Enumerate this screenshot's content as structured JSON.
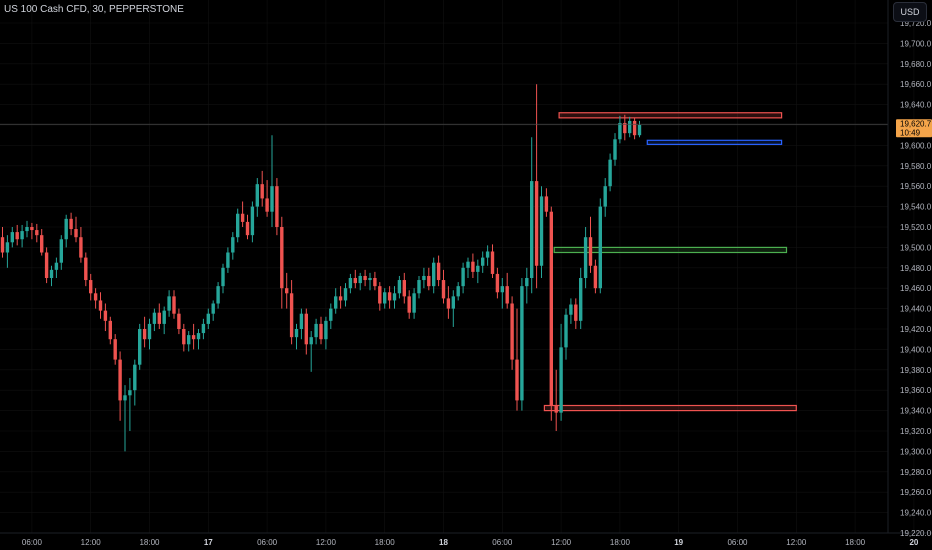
{
  "header": {
    "symbol_title": "US 100 Cash CFD, 30, PEPPERSTONE",
    "currency_button": "USD"
  },
  "price_badge": {
    "price": "19,620.7",
    "countdown": "10:49"
  },
  "colors": {
    "up": "#26a69a",
    "down": "#ef5350",
    "background": "#000000",
    "grid": "#111111",
    "axis_text": "#b2b5be",
    "price_label": "#f4a44a",
    "zone_red": "#ef5350",
    "zone_blue": "#2962ff",
    "zone_green": "#4caf50"
  },
  "chart_data": {
    "type": "candlestick",
    "instrument": "US 100 Cash CFD",
    "timeframe": "30",
    "exchange": "PEPPERSTONE",
    "y_ticks": [
      "19,720.0",
      "19,700.0",
      "19,680.0",
      "19,660.0",
      "19,640.0",
      "19,620.0",
      "19,600.0",
      "19,580.0",
      "19,560.0",
      "19,540.0",
      "19,520.0",
      "19,500.0",
      "19,480.0",
      "19,460.0",
      "19,440.0",
      "19,420.0",
      "19,400.0",
      "19,380.0",
      "19,360.0",
      "19,340.0",
      "19,320.0",
      "19,300.0",
      "19,280.0",
      "19,260.0",
      "19,240.0",
      "19,220.0"
    ],
    "x_ticks": [
      {
        "label": "06:00",
        "bold": false
      },
      {
        "label": "12:00",
        "bold": false
      },
      {
        "label": "18:00",
        "bold": false
      },
      {
        "label": "17",
        "bold": true
      },
      {
        "label": "06:00",
        "bold": false
      },
      {
        "label": "12:00",
        "bold": false
      },
      {
        "label": "18:00",
        "bold": false
      },
      {
        "label": "18",
        "bold": true
      },
      {
        "label": "06:00",
        "bold": false
      },
      {
        "label": "12:00",
        "bold": false
      },
      {
        "label": "18:00",
        "bold": false
      },
      {
        "label": "19",
        "bold": true
      },
      {
        "label": "06:00",
        "bold": false
      },
      {
        "label": "12:00",
        "bold": false
      },
      {
        "label": "18:00",
        "bold": false
      },
      {
        "label": "20",
        "bold": true
      }
    ],
    "ylim": [
      19220,
      19730
    ],
    "last_price": 19620.7,
    "zones": [
      {
        "type": "supply",
        "color": "red",
        "top": 19632,
        "bottom": 19627,
        "from_bar": 114,
        "to_bar": 159
      },
      {
        "type": "demand",
        "color": "blue",
        "top": 19605,
        "bottom": 19601,
        "from_bar": 132,
        "to_bar": 159
      },
      {
        "type": "level",
        "color": "green",
        "top": 19500,
        "bottom": 19495,
        "from_bar": 113,
        "to_bar": 160
      },
      {
        "type": "demand",
        "color": "red",
        "top": 19345,
        "bottom": 19340,
        "from_bar": 111,
        "to_bar": 162
      }
    ],
    "ohlc": [
      [
        19510,
        19520,
        19490,
        19495
      ],
      [
        19495,
        19512,
        19480,
        19505
      ],
      [
        19505,
        19520,
        19500,
        19515
      ],
      [
        19515,
        19522,
        19502,
        19508
      ],
      [
        19508,
        19522,
        19500,
        19516
      ],
      [
        19516,
        19526,
        19510,
        19520
      ],
      [
        19520,
        19524,
        19508,
        19517
      ],
      [
        19517,
        19523,
        19505,
        19512
      ],
      [
        19512,
        19518,
        19492,
        19495
      ],
      [
        19495,
        19500,
        19465,
        19470
      ],
      [
        19470,
        19482,
        19462,
        19478
      ],
      [
        19478,
        19490,
        19470,
        19485
      ],
      [
        19485,
        19512,
        19478,
        19508
      ],
      [
        19508,
        19532,
        19500,
        19528
      ],
      [
        19528,
        19534,
        19512,
        19518
      ],
      [
        19518,
        19530,
        19505,
        19510
      ],
      [
        19510,
        19520,
        19485,
        19490
      ],
      [
        19490,
        19495,
        19462,
        19468
      ],
      [
        19468,
        19474,
        19448,
        19455
      ],
      [
        19455,
        19460,
        19440,
        19448
      ],
      [
        19448,
        19456,
        19430,
        19438
      ],
      [
        19438,
        19445,
        19418,
        19428
      ],
      [
        19428,
        19432,
        19405,
        19410
      ],
      [
        19410,
        19415,
        19385,
        19390
      ],
      [
        19390,
        19398,
        19330,
        19350
      ],
      [
        19350,
        19365,
        19300,
        19355
      ],
      [
        19355,
        19372,
        19320,
        19360
      ],
      [
        19360,
        19390,
        19345,
        19385
      ],
      [
        19385,
        19425,
        19380,
        19420
      ],
      [
        19420,
        19432,
        19402,
        19410
      ],
      [
        19410,
        19430,
        19400,
        19425
      ],
      [
        19425,
        19440,
        19418,
        19436
      ],
      [
        19436,
        19445,
        19420,
        19425
      ],
      [
        19425,
        19442,
        19415,
        19438
      ],
      [
        19438,
        19458,
        19432,
        19452
      ],
      [
        19452,
        19458,
        19430,
        19435
      ],
      [
        19435,
        19440,
        19415,
        19420
      ],
      [
        19420,
        19425,
        19398,
        19405
      ],
      [
        19405,
        19418,
        19398,
        19414
      ],
      [
        19414,
        19425,
        19400,
        19410
      ],
      [
        19410,
        19420,
        19400,
        19416
      ],
      [
        19416,
        19430,
        19410,
        19425
      ],
      [
        19425,
        19440,
        19420,
        19435
      ],
      [
        19435,
        19448,
        19428,
        19445
      ],
      [
        19445,
        19466,
        19440,
        19462
      ],
      [
        19462,
        19484,
        19455,
        19480
      ],
      [
        19480,
        19500,
        19475,
        19495
      ],
      [
        19495,
        19515,
        19488,
        19510
      ],
      [
        19510,
        19538,
        19505,
        19533
      ],
      [
        19533,
        19545,
        19520,
        19525
      ],
      [
        19525,
        19532,
        19508,
        19512
      ],
      [
        19512,
        19545,
        19505,
        19540
      ],
      [
        19540,
        19568,
        19530,
        19562
      ],
      [
        19562,
        19575,
        19540,
        19548
      ],
      [
        19548,
        19566,
        19530,
        19535
      ],
      [
        19535,
        19610,
        19520,
        19560
      ],
      [
        19560,
        19568,
        19512,
        19520
      ],
      [
        19520,
        19530,
        19440,
        19460
      ],
      [
        19460,
        19475,
        19440,
        19455
      ],
      [
        19455,
        19468,
        19405,
        19412
      ],
      [
        19412,
        19425,
        19400,
        19420
      ],
      [
        19420,
        19440,
        19410,
        19435
      ],
      [
        19435,
        19440,
        19395,
        19405
      ],
      [
        19405,
        19418,
        19378,
        19412
      ],
      [
        19412,
        19430,
        19405,
        19425
      ],
      [
        19425,
        19432,
        19405,
        19410
      ],
      [
        19410,
        19432,
        19400,
        19428
      ],
      [
        19428,
        19445,
        19420,
        19440
      ],
      [
        19440,
        19460,
        19435,
        19452
      ],
      [
        19452,
        19462,
        19440,
        19448
      ],
      [
        19448,
        19465,
        19442,
        19460
      ],
      [
        19460,
        19474,
        19455,
        19470
      ],
      [
        19470,
        19478,
        19460,
        19465
      ],
      [
        19465,
        19475,
        19458,
        19472
      ],
      [
        19472,
        19478,
        19462,
        19468
      ],
      [
        19468,
        19475,
        19458,
        19470
      ],
      [
        19470,
        19476,
        19458,
        19462
      ],
      [
        19462,
        19466,
        19438,
        19445
      ],
      [
        19445,
        19460,
        19440,
        19456
      ],
      [
        19456,
        19462,
        19440,
        19448
      ],
      [
        19448,
        19462,
        19440,
        19455
      ],
      [
        19455,
        19472,
        19450,
        19468
      ],
      [
        19468,
        19475,
        19445,
        19452
      ],
      [
        19452,
        19458,
        19430,
        19436
      ],
      [
        19436,
        19460,
        19430,
        19455
      ],
      [
        19455,
        19472,
        19450,
        19468
      ],
      [
        19468,
        19480,
        19460,
        19472
      ],
      [
        19472,
        19480,
        19458,
        19462
      ],
      [
        19462,
        19490,
        19455,
        19485
      ],
      [
        19485,
        19492,
        19462,
        19468
      ],
      [
        19468,
        19478,
        19445,
        19450
      ],
      [
        19450,
        19462,
        19430,
        19440
      ],
      [
        19440,
        19458,
        19422,
        19452
      ],
      [
        19452,
        19466,
        19448,
        19462
      ],
      [
        19462,
        19485,
        19455,
        19480
      ],
      [
        19480,
        19490,
        19470,
        19486
      ],
      [
        19486,
        19494,
        19470,
        19476
      ],
      [
        19476,
        19488,
        19465,
        19482
      ],
      [
        19482,
        19496,
        19475,
        19490
      ],
      [
        19490,
        19502,
        19482,
        19496
      ],
      [
        19496,
        19503,
        19470,
        19474
      ],
      [
        19474,
        19480,
        19450,
        19456
      ],
      [
        19456,
        19470,
        19440,
        19462
      ],
      [
        19462,
        19475,
        19440,
        19445
      ],
      [
        19445,
        19452,
        19380,
        19390
      ],
      [
        19390,
        19440,
        19340,
        19350
      ],
      [
        19350,
        19470,
        19340,
        19462
      ],
      [
        19462,
        19480,
        19445,
        19470
      ],
      [
        19470,
        19608,
        19455,
        19565
      ],
      [
        19565,
        19660,
        19460,
        19482
      ],
      [
        19482,
        19560,
        19470,
        19550
      ],
      [
        19550,
        19558,
        19530,
        19535
      ],
      [
        19535,
        19540,
        19330,
        19345
      ],
      [
        19345,
        19380,
        19320,
        19338
      ],
      [
        19338,
        19425,
        19330,
        19402
      ],
      [
        19402,
        19440,
        19390,
        19434
      ],
      [
        19434,
        19450,
        19425,
        19444
      ],
      [
        19444,
        19450,
        19420,
        19428
      ],
      [
        19428,
        19480,
        19420,
        19470
      ],
      [
        19470,
        19520,
        19460,
        19510
      ],
      [
        19510,
        19530,
        19475,
        19482
      ],
      [
        19482,
        19488,
        19455,
        19460
      ],
      [
        19460,
        19548,
        19455,
        19540
      ],
      [
        19540,
        19568,
        19530,
        19560
      ],
      [
        19560,
        19592,
        19555,
        19586
      ],
      [
        19586,
        19612,
        19580,
        19606
      ],
      [
        19606,
        19629,
        19602,
        19622
      ],
      [
        19622,
        19630,
        19605,
        19612
      ],
      [
        19612,
        19628,
        19608,
        19624
      ],
      [
        19624,
        19627,
        19606,
        19610
      ],
      [
        19610,
        19624,
        19608,
        19620
      ]
    ]
  }
}
